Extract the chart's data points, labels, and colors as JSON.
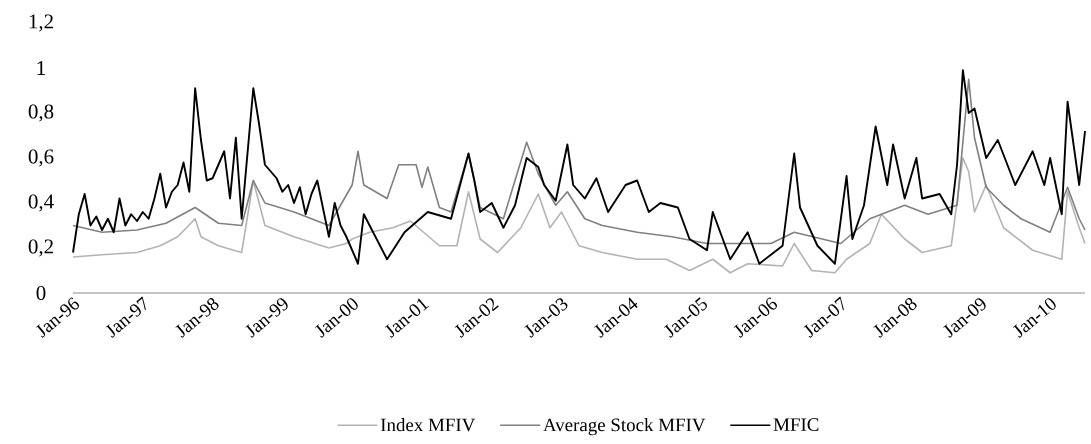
{
  "chart_data": {
    "type": "line",
    "marker": "none",
    "line_style": "solid",
    "legend": "bottom",
    "grid": false,
    "xlim": [
      "1996-01",
      "2010-07"
    ],
    "ylim": [
      0,
      1.2
    ],
    "xticks": [
      {
        "value": "1996-01",
        "label": "Jan-96"
      },
      {
        "value": "1997-01",
        "label": "Jan-97"
      },
      {
        "value": "1998-01",
        "label": "Jan-98"
      },
      {
        "value": "1999-01",
        "label": "Jan-99"
      },
      {
        "value": "2000-01",
        "label": "Jan-00"
      },
      {
        "value": "2001-01",
        "label": "Jan-01"
      },
      {
        "value": "2002-01",
        "label": "Jan-02"
      },
      {
        "value": "2003-01",
        "label": "Jan-03"
      },
      {
        "value": "2004-01",
        "label": "Jan-04"
      },
      {
        "value": "2005-01",
        "label": "Jan-05"
      },
      {
        "value": "2006-01",
        "label": "Jan-06"
      },
      {
        "value": "2007-01",
        "label": "Jan-07"
      },
      {
        "value": "2008-01",
        "label": "Jan-08"
      },
      {
        "value": "2009-01",
        "label": "Jan-09"
      },
      {
        "value": "2010-01",
        "label": "Jan-10"
      }
    ],
    "yticks": [
      0,
      {
        "value": 0.2,
        "label": "0,2"
      },
      {
        "value": 0.4,
        "label": "0,4"
      },
      {
        "value": 0.6,
        "label": "0,6"
      },
      {
        "value": 0.8,
        "label": "0,8"
      },
      1,
      {
        "value": 1.2,
        "label": "1,2"
      }
    ],
    "series": [
      {
        "name": "Index MFIV",
        "color": "#b3b3b3",
        "x": [
          "1996-01",
          "1996-06",
          "1996-12",
          "1997-04",
          "1997-07",
          "1997-10",
          "1997-11",
          "1998-02",
          "1998-06",
          "1998-08",
          "1998-09",
          "1998-10",
          "1999-03",
          "1999-09",
          "1999-12",
          "2000-01",
          "2000-04",
          "2000-08",
          "2000-11",
          "2001-04",
          "2001-07",
          "2001-09",
          "2001-11",
          "2002-02",
          "2002-06",
          "2002-09",
          "2002-11",
          "2003-01",
          "2003-04",
          "2003-08",
          "2004-02",
          "2004-07",
          "2004-11",
          "2005-03",
          "2005-06",
          "2005-09",
          "2006-03",
          "2006-05",
          "2006-08",
          "2006-12",
          "2007-02",
          "2007-06",
          "2007-08",
          "2007-12",
          "2008-03",
          "2008-08",
          "2008-10",
          "2008-11",
          "2008-12",
          "2009-02",
          "2009-05",
          "2009-10",
          "2010-03",
          "2010-04",
          "2010-06",
          "2010-07"
        ],
        "values": [
          0.16,
          0.17,
          0.18,
          0.21,
          0.25,
          0.33,
          0.25,
          0.21,
          0.18,
          0.5,
          0.4,
          0.3,
          0.25,
          0.2,
          0.22,
          0.24,
          0.27,
          0.29,
          0.32,
          0.21,
          0.21,
          0.45,
          0.24,
          0.18,
          0.29,
          0.44,
          0.29,
          0.36,
          0.21,
          0.18,
          0.15,
          0.15,
          0.1,
          0.15,
          0.09,
          0.13,
          0.12,
          0.22,
          0.1,
          0.09,
          0.15,
          0.22,
          0.35,
          0.24,
          0.18,
          0.21,
          0.6,
          0.54,
          0.36,
          0.48,
          0.29,
          0.19,
          0.15,
          0.45,
          0.29,
          0.22
        ]
      },
      {
        "name": "Average Stock MFIV",
        "color": "#808080",
        "x": [
          "1996-01",
          "1996-06",
          "1996-12",
          "1997-05",
          "1997-10",
          "1998-02",
          "1998-06",
          "1998-08",
          "1998-10",
          "1999-03",
          "1999-09",
          "2000-01",
          "2000-02",
          "2000-03",
          "2000-07",
          "2000-09",
          "2000-12",
          "2001-01",
          "2001-02",
          "2001-04",
          "2001-06",
          "2001-09",
          "2001-11",
          "2002-03",
          "2002-07",
          "2002-09",
          "2002-12",
          "2003-02",
          "2003-05",
          "2003-08",
          "2004-02",
          "2004-08",
          "2005-02",
          "2005-06",
          "2006-01",
          "2006-05",
          "2007-01",
          "2007-06",
          "2007-12",
          "2008-04",
          "2008-09",
          "2008-11",
          "2008-12",
          "2009-02",
          "2009-05",
          "2009-08",
          "2010-01",
          "2010-04",
          "2010-06",
          "2010-07"
        ],
        "values": [
          0.3,
          0.27,
          0.28,
          0.31,
          0.38,
          0.31,
          0.3,
          0.5,
          0.4,
          0.36,
          0.3,
          0.48,
          0.63,
          0.48,
          0.42,
          0.57,
          0.57,
          0.47,
          0.56,
          0.38,
          0.36,
          0.62,
          0.38,
          0.33,
          0.67,
          0.53,
          0.39,
          0.45,
          0.33,
          0.3,
          0.27,
          0.25,
          0.22,
          0.22,
          0.22,
          0.27,
          0.22,
          0.33,
          0.39,
          0.35,
          0.39,
          0.95,
          0.69,
          0.47,
          0.39,
          0.33,
          0.27,
          0.47,
          0.33,
          0.28
        ]
      },
      {
        "name": "MFIC",
        "color": "#000000",
        "x": [
          "1996-01",
          "1996-02",
          "1996-03",
          "1996-04",
          "1996-05",
          "1996-06",
          "1996-07",
          "1996-08",
          "1996-09",
          "1996-10",
          "1996-11",
          "1996-12",
          "1997-01",
          "1997-02",
          "1997-03",
          "1997-04",
          "1997-05",
          "1997-06",
          "1997-07",
          "1997-08",
          "1997-09",
          "1997-10",
          "1997-11",
          "1997-12",
          "1998-01",
          "1998-03",
          "1998-04",
          "1998-05",
          "1998-06",
          "1998-08",
          "1998-09",
          "1998-10",
          "1998-12",
          "1999-01",
          "1999-02",
          "1999-03",
          "1999-04",
          "1999-05",
          "1999-06",
          "1999-07",
          "1999-09",
          "1999-10",
          "1999-11",
          "1999-12",
          "2000-02",
          "2000-03",
          "2000-07",
          "2000-10",
          "2001-02",
          "2001-06",
          "2001-09",
          "2001-10",
          "2001-11",
          "2002-01",
          "2002-03",
          "2002-05",
          "2002-07",
          "2002-09",
          "2002-10",
          "2002-12",
          "2003-02",
          "2003-03",
          "2003-05",
          "2003-07",
          "2003-09",
          "2003-12",
          "2004-02",
          "2004-04",
          "2004-06",
          "2004-09",
          "2004-11",
          "2005-02",
          "2005-03",
          "2005-06",
          "2005-09",
          "2005-11",
          "2006-03",
          "2006-05",
          "2006-06",
          "2006-09",
          "2006-12",
          "2007-02",
          "2007-03",
          "2007-05",
          "2007-07",
          "2007-09",
          "2007-10",
          "2007-12",
          "2008-02",
          "2008-03",
          "2008-06",
          "2008-08",
          "2008-09",
          "2008-10",
          "2008-11",
          "2008-12",
          "2009-02",
          "2009-04",
          "2009-07",
          "2009-10",
          "2009-12",
          "2010-01",
          "2010-03",
          "2010-04",
          "2010-06",
          "2010-07"
        ],
        "values": [
          0.18,
          0.35,
          0.44,
          0.3,
          0.34,
          0.28,
          0.33,
          0.27,
          0.42,
          0.3,
          0.35,
          0.32,
          0.36,
          0.33,
          0.42,
          0.53,
          0.38,
          0.45,
          0.48,
          0.58,
          0.45,
          0.91,
          0.68,
          0.5,
          0.51,
          0.63,
          0.42,
          0.69,
          0.33,
          0.91,
          0.75,
          0.57,
          0.51,
          0.45,
          0.48,
          0.4,
          0.47,
          0.35,
          0.44,
          0.5,
          0.25,
          0.4,
          0.3,
          0.25,
          0.13,
          0.35,
          0.15,
          0.27,
          0.36,
          0.33,
          0.62,
          0.5,
          0.36,
          0.4,
          0.29,
          0.39,
          0.6,
          0.56,
          0.48,
          0.41,
          0.66,
          0.48,
          0.42,
          0.51,
          0.36,
          0.48,
          0.5,
          0.36,
          0.4,
          0.38,
          0.24,
          0.19,
          0.36,
          0.15,
          0.27,
          0.13,
          0.21,
          0.62,
          0.38,
          0.21,
          0.13,
          0.52,
          0.24,
          0.39,
          0.74,
          0.48,
          0.66,
          0.42,
          0.6,
          0.42,
          0.44,
          0.35,
          0.57,
          0.99,
          0.8,
          0.82,
          0.6,
          0.68,
          0.48,
          0.63,
          0.48,
          0.6,
          0.35,
          0.85,
          0.48,
          0.72
        ]
      }
    ]
  }
}
